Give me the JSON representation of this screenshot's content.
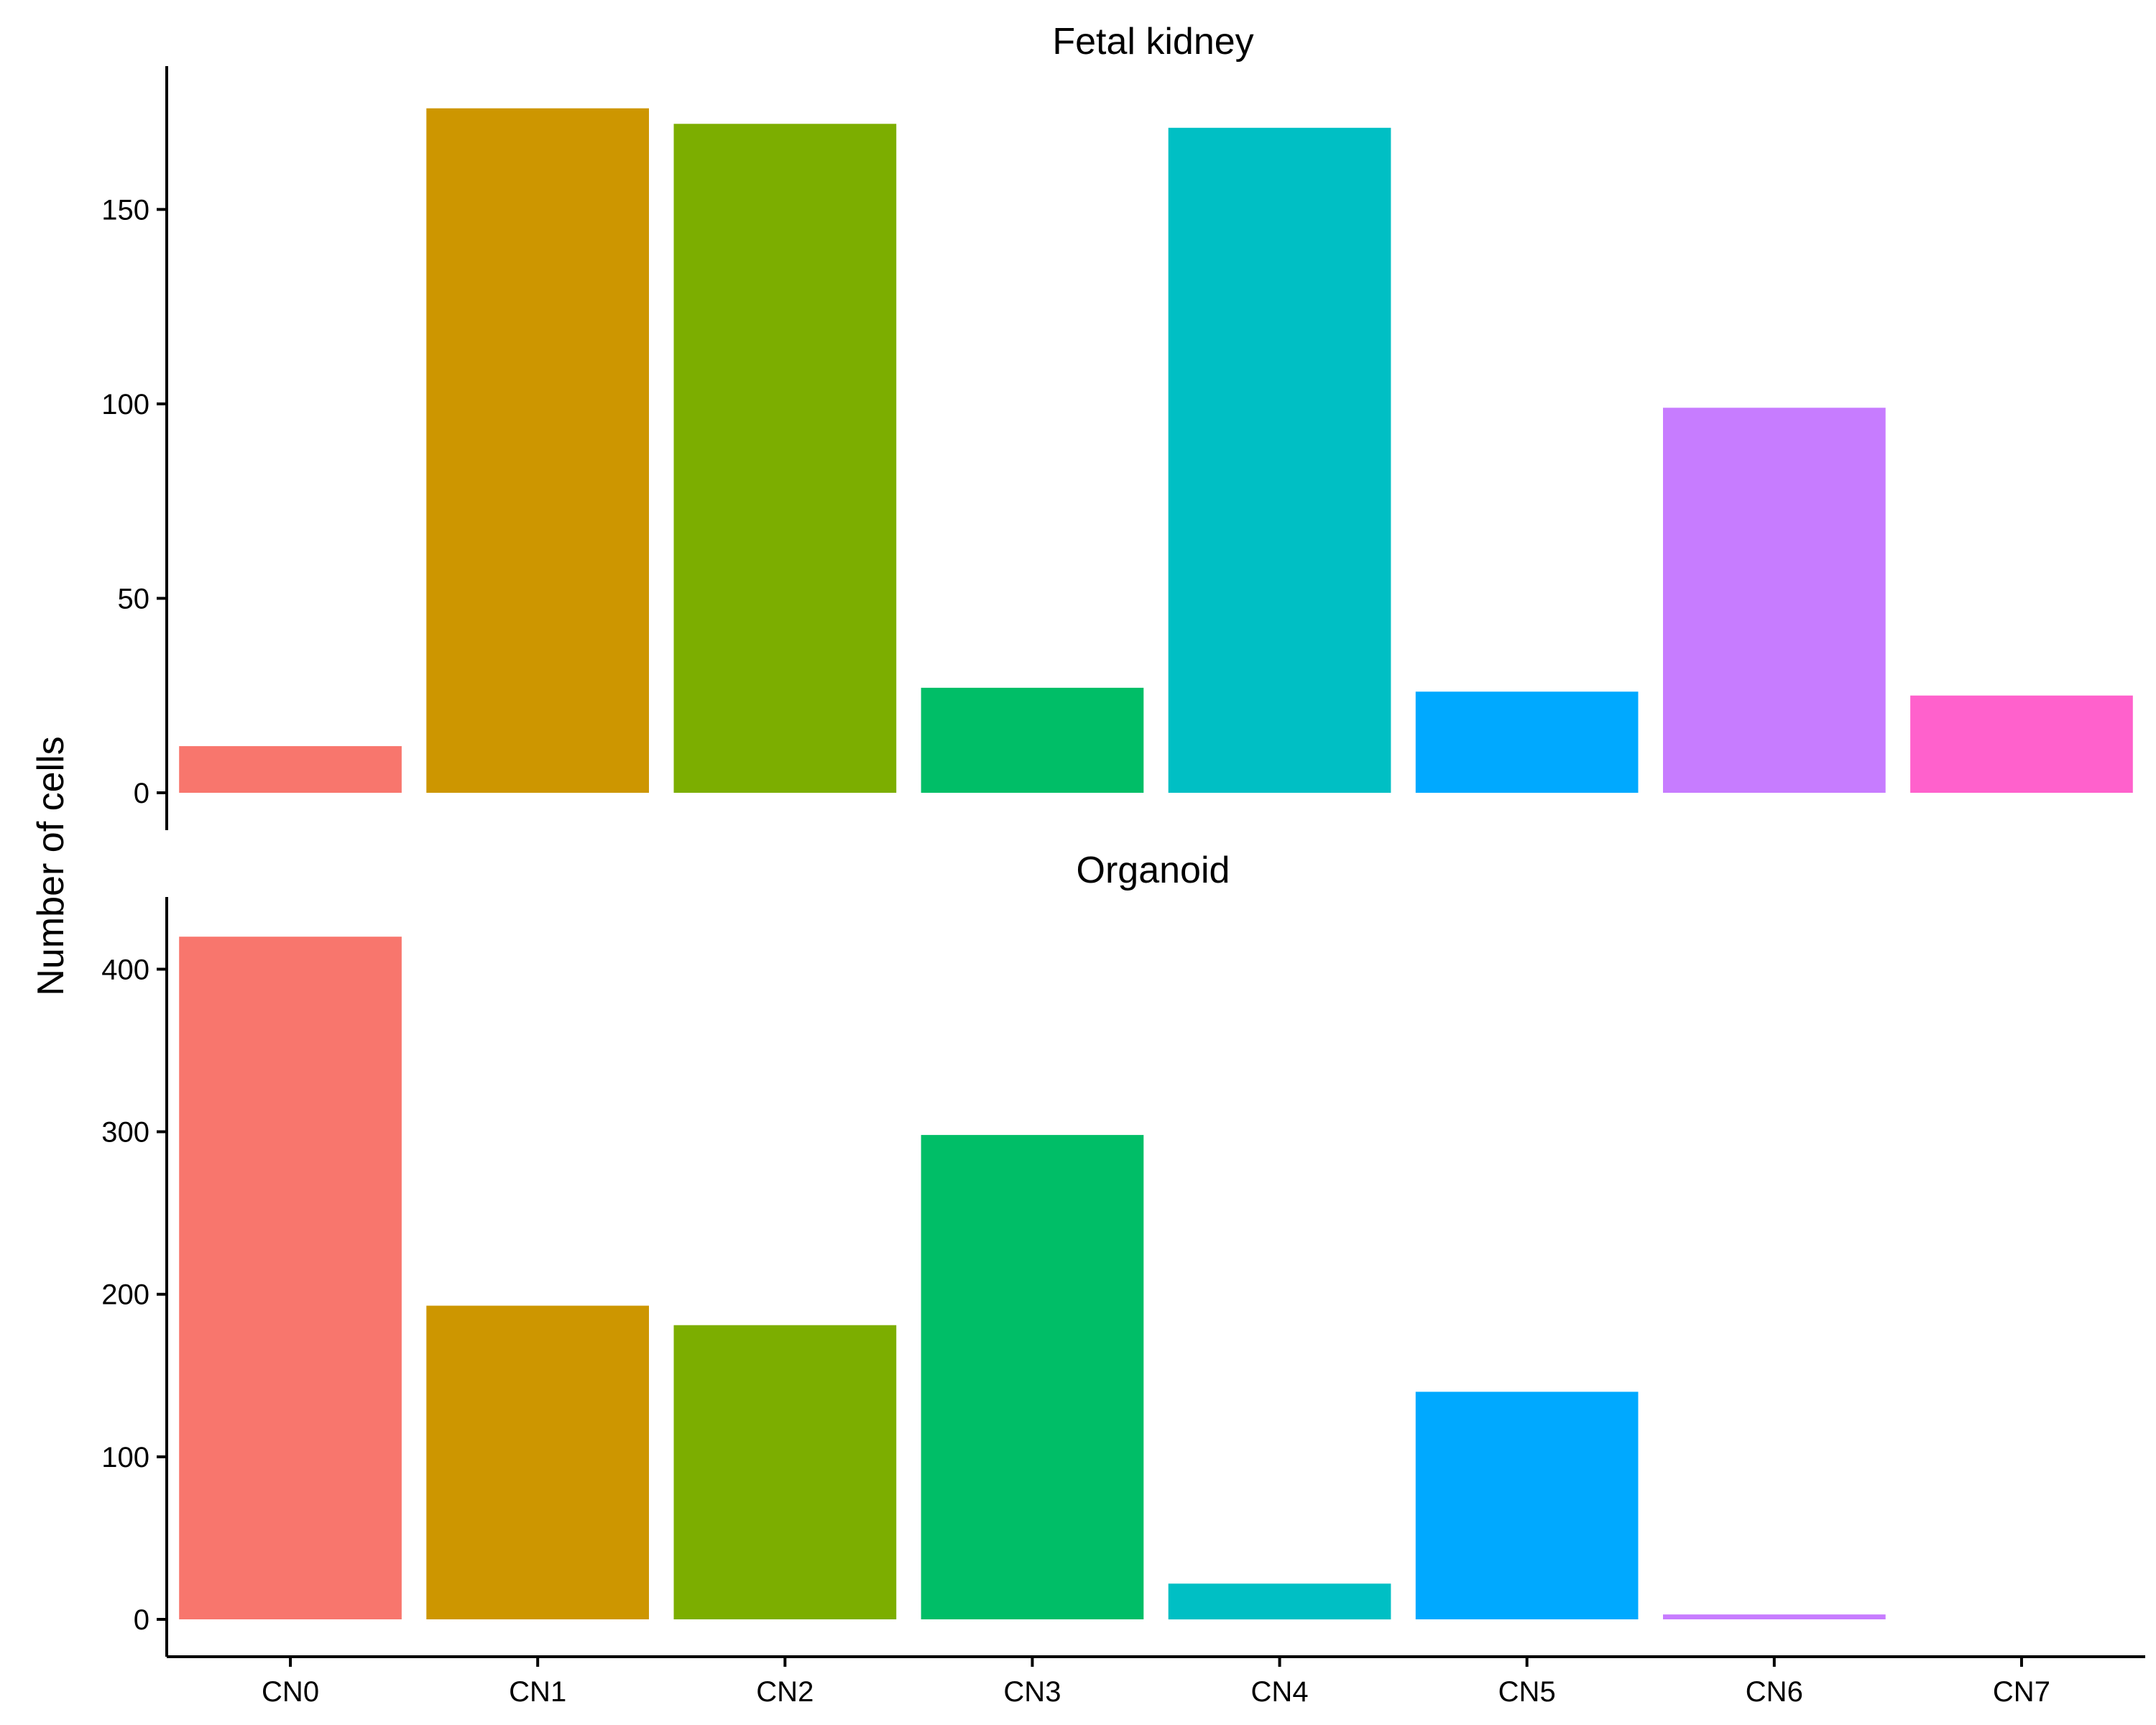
{
  "chart_data": {
    "type": "bar",
    "ylabel": "Number of cells",
    "xlabel": "",
    "grid": false,
    "legend": "none",
    "categories": [
      "CN0",
      "CN1",
      "CN2",
      "CN3",
      "CN4",
      "CN5",
      "CN6",
      "CN7"
    ],
    "colors": [
      "#F8766D",
      "#CD9600",
      "#7CAE00",
      "#00BE67",
      "#00BFC4",
      "#00A9FF",
      "#C77CFF",
      "#FF61CC"
    ],
    "panels": [
      {
        "title": "Fetal kidney",
        "values": [
          12,
          176,
          172,
          27,
          171,
          26,
          99,
          25
        ],
        "ylim": [
          0,
          185
        ],
        "yticks": [
          0,
          50,
          100,
          150
        ]
      },
      {
        "title": "Organoid",
        "values": [
          420,
          193,
          181,
          298,
          22,
          140,
          3,
          0
        ],
        "ylim": [
          0,
          440
        ],
        "yticks": [
          0,
          100,
          200,
          300,
          400
        ]
      }
    ]
  }
}
